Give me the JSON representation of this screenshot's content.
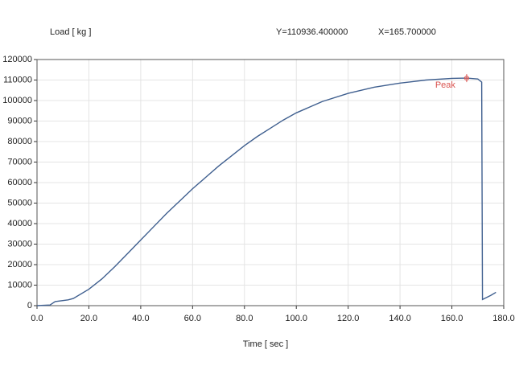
{
  "chart_data": {
    "type": "line",
    "y_label": "Load [ kg ]",
    "x_label": "Time [ sec ]",
    "readout_y": "Y=110936.400000",
    "readout_x": "X=165.700000",
    "annotation": {
      "text": "Peak",
      "x": 165.7,
      "y": 110936.4,
      "color": "#d9534f"
    },
    "x": [
      0,
      5,
      7,
      12,
      14,
      20,
      25,
      30,
      35,
      40,
      45,
      50,
      55,
      60,
      65,
      70,
      75,
      80,
      85,
      90,
      95,
      100,
      110,
      120,
      130,
      140,
      150,
      160,
      165.7,
      170,
      171.5,
      171.8,
      175,
      177
    ],
    "series": [
      {
        "name": "Load",
        "color": "#3f5f8f",
        "values": [
          0,
          300,
          2000,
          2800,
          3500,
          8000,
          13000,
          19000,
          25500,
          32000,
          38500,
          45000,
          51000,
          57000,
          62500,
          68000,
          73000,
          78000,
          82500,
          86500,
          90500,
          94000,
          99500,
          103500,
          106500,
          108500,
          110000,
          110800,
          110936.4,
          110500,
          109000,
          3000,
          5000,
          6500
        ]
      }
    ],
    "xlim": [
      0,
      180
    ],
    "ylim": [
      0,
      120000
    ],
    "xticks": [
      {
        "value": 0,
        "label": "0.0"
      },
      {
        "value": 20,
        "label": "20.0"
      },
      {
        "value": 40,
        "label": "40.0"
      },
      {
        "value": 60,
        "label": "60.0"
      },
      {
        "value": 80,
        "label": "80.0"
      },
      {
        "value": 100,
        "label": "100.0"
      },
      {
        "value": 120,
        "label": "120.0"
      },
      {
        "value": 140,
        "label": "140.0"
      },
      {
        "value": 160,
        "label": "160.0"
      },
      {
        "value": 180,
        "label": "180.0"
      }
    ],
    "yticks": [
      0,
      10000,
      20000,
      30000,
      40000,
      50000,
      60000,
      70000,
      80000,
      90000,
      100000,
      110000,
      120000
    ],
    "grid": true
  }
}
